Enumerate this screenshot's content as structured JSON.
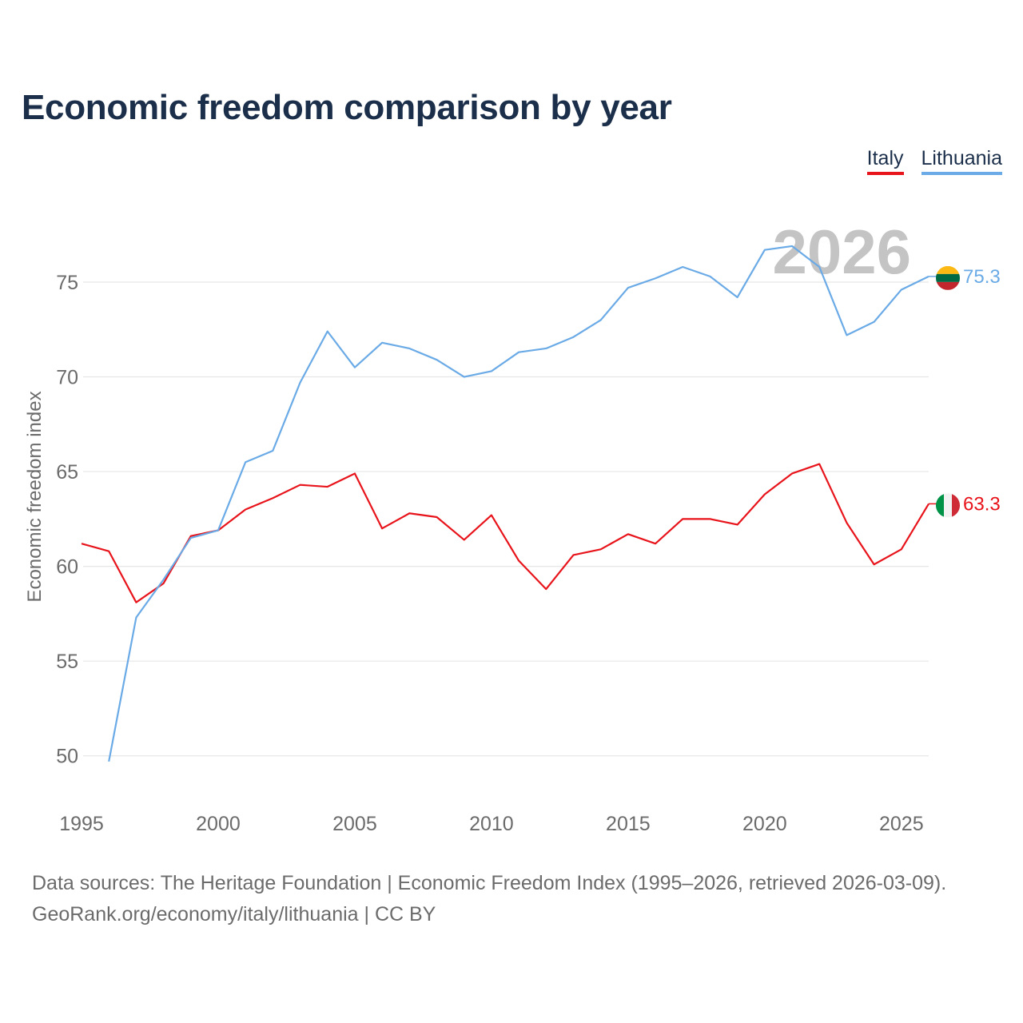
{
  "chart_data": {
    "type": "line",
    "title": "Economic freedom comparison by year",
    "xlabel": "",
    "ylabel": "Economic freedom index",
    "xlim": [
      1995,
      2026
    ],
    "ylim": [
      47.5,
      78.5
    ],
    "xticks": [
      1995,
      2000,
      2005,
      2010,
      2015,
      2020,
      2025
    ],
    "yticks": [
      50,
      55,
      60,
      65,
      70,
      75
    ],
    "grid": true,
    "legend_position": "top-right",
    "year_watermark": "2026",
    "series": [
      {
        "name": "Italy",
        "color": "#e8141b",
        "end_label": "63.3",
        "flag": "italy-flag-icon",
        "x": [
          1995,
          1996,
          1997,
          1998,
          1999,
          2000,
          2001,
          2002,
          2003,
          2004,
          2005,
          2006,
          2007,
          2008,
          2009,
          2010,
          2011,
          2012,
          2013,
          2014,
          2015,
          2016,
          2017,
          2018,
          2019,
          2020,
          2021,
          2022,
          2023,
          2024,
          2025,
          2026
        ],
        "values": [
          61.2,
          60.8,
          58.1,
          59.1,
          61.6,
          61.9,
          63.0,
          63.6,
          64.3,
          64.2,
          64.9,
          62.0,
          62.8,
          62.6,
          61.4,
          62.7,
          60.3,
          58.8,
          60.6,
          60.9,
          61.7,
          61.2,
          62.5,
          62.5,
          62.2,
          63.8,
          64.9,
          65.4,
          62.3,
          60.1,
          60.9,
          63.3
        ]
      },
      {
        "name": "Lithuania",
        "color": "#6aaae6",
        "end_label": "75.3",
        "flag": "lithuania-flag-icon",
        "x": [
          1996,
          1997,
          1998,
          1999,
          2000,
          2001,
          2002,
          2003,
          2004,
          2005,
          2006,
          2007,
          2008,
          2009,
          2010,
          2011,
          2012,
          2013,
          2014,
          2015,
          2016,
          2017,
          2018,
          2019,
          2020,
          2021,
          2022,
          2023,
          2024,
          2025,
          2026
        ],
        "values": [
          49.7,
          57.3,
          59.3,
          61.5,
          61.9,
          65.5,
          66.1,
          69.7,
          72.4,
          70.5,
          71.8,
          71.5,
          70.9,
          70.0,
          70.3,
          71.3,
          71.5,
          72.1,
          73.0,
          74.7,
          75.2,
          75.8,
          75.3,
          74.2,
          76.7,
          76.9,
          75.8,
          72.2,
          72.9,
          74.6,
          75.3
        ]
      }
    ]
  },
  "footer": {
    "sources": "Data sources: The Heritage Foundation | Economic Freedom Index (1995–2026, retrieved 2026-03-09).",
    "credit": "GeoRank.org/economy/italy/lithuania | CC BY"
  },
  "colors": {
    "title": "#1b2f4b",
    "grid": "#e6e6e6",
    "axis_text": "#6b6b6b",
    "watermark": "#c4c4c4"
  }
}
